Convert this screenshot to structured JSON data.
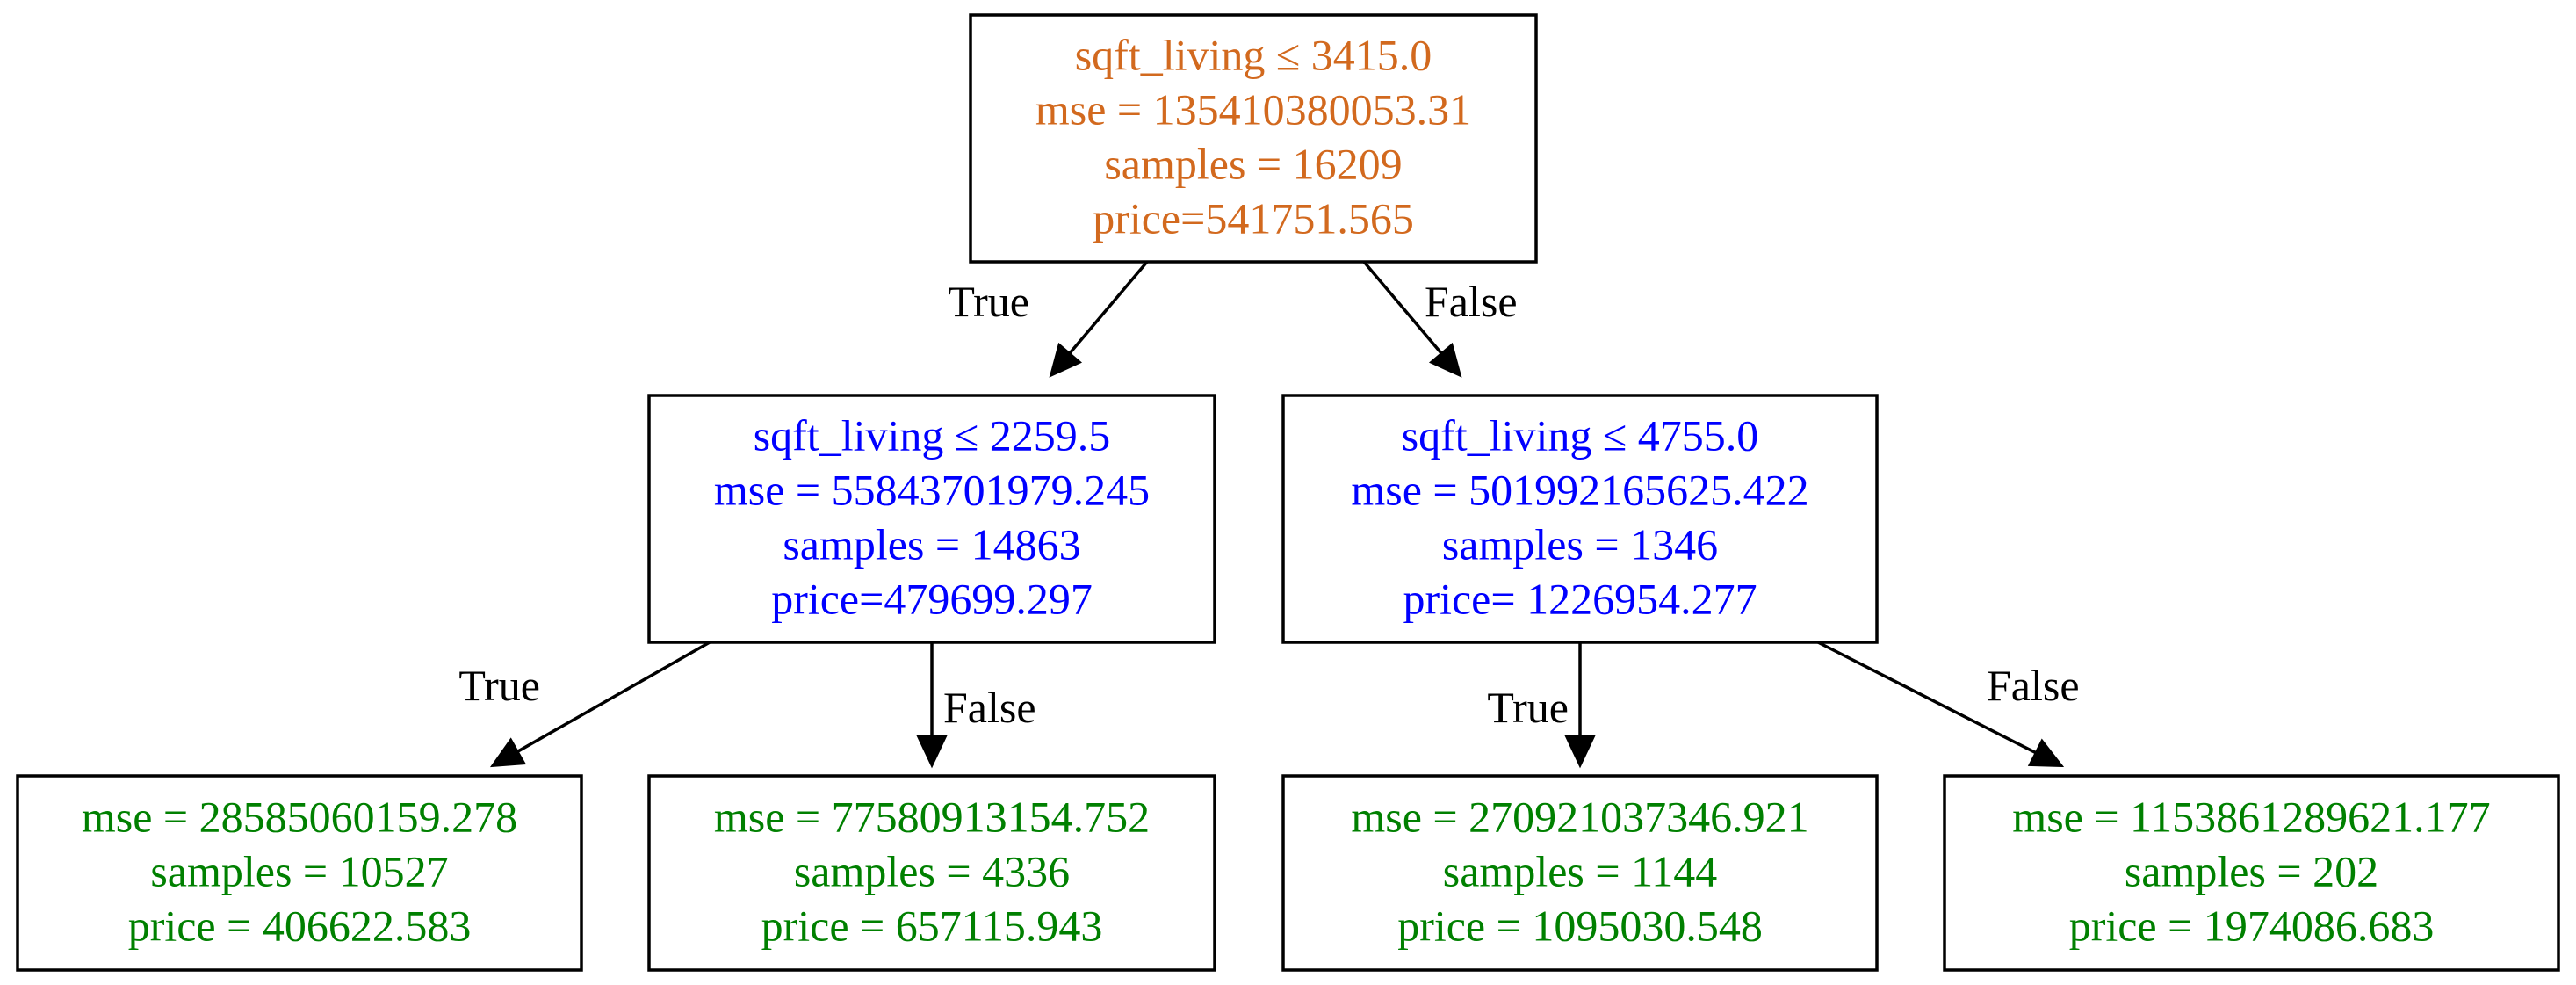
{
  "colors": {
    "root": "#d2691e",
    "internal": "#0000ff",
    "leaf": "#008000",
    "edge": "#000000"
  },
  "nodes": [
    {
      "id": "n0",
      "color_role": "root",
      "lines": [
        "sqft_living ≤ 3415.0",
        "mse = 135410380053.31",
        "samples = 16209",
        "price=541751.565"
      ]
    },
    {
      "id": "n1",
      "color_role": "internal",
      "lines": [
        "sqft_living ≤ 2259.5",
        "mse = 55843701979.245",
        "samples = 14863",
        "price=479699.297"
      ]
    },
    {
      "id": "n2",
      "color_role": "internal",
      "lines": [
        "sqft_living ≤ 4755.0",
        "mse = 501992165625.422",
        "samples = 1346",
        "price= 1226954.277"
      ]
    },
    {
      "id": "n3",
      "color_role": "leaf",
      "lines": [
        "mse = 28585060159.278",
        "samples = 10527",
        "price = 406622.583"
      ]
    },
    {
      "id": "n4",
      "color_role": "leaf",
      "lines": [
        "mse = 77580913154.752",
        "samples = 4336",
        "price = 657115.943"
      ]
    },
    {
      "id": "n5",
      "color_role": "leaf",
      "lines": [
        "mse = 270921037346.921",
        "samples = 1144",
        "price = 1095030.548"
      ]
    },
    {
      "id": "n6",
      "color_role": "leaf",
      "lines": [
        "mse = 1153861289621.177",
        "samples = 202",
        "price = 1974086.683"
      ]
    }
  ],
  "edges": [
    {
      "from": "n0",
      "to": "n1",
      "label": "True"
    },
    {
      "from": "n0",
      "to": "n2",
      "label": "False"
    },
    {
      "from": "n1",
      "to": "n3",
      "label": "True"
    },
    {
      "from": "n1",
      "to": "n4",
      "label": "False"
    },
    {
      "from": "n2",
      "to": "n5",
      "label": "True"
    },
    {
      "from": "n2",
      "to": "n6",
      "label": "False"
    }
  ]
}
